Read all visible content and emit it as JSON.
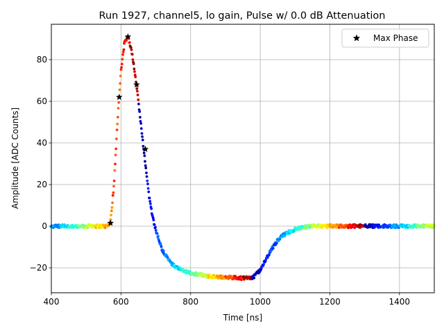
{
  "chart_data": {
    "type": "scatter",
    "title": "Run 1927, channel5, lo gain, Pulse w/ 0.0 dB Attenuation",
    "xlabel": "Time [ns]",
    "ylabel": "Amplitude [ADC Counts]",
    "xlim": [
      400,
      1500
    ],
    "ylim": [
      -32,
      97
    ],
    "xticks": [
      400,
      600,
      800,
      1000,
      1200,
      1400
    ],
    "yticks": [
      -20,
      0,
      20,
      40,
      60,
      80
    ],
    "grid": true,
    "colormap": "jet",
    "legend": {
      "position": "top-right",
      "entries": [
        {
          "label": "Max Phase",
          "marker": "star"
        }
      ]
    },
    "pulse_shape": {
      "x": [
        400,
        560,
        570,
        580,
        590,
        600,
        610,
        620,
        630,
        640,
        650,
        660,
        670,
        680,
        690,
        700,
        710,
        720,
        740,
        760,
        780,
        800,
        850,
        900,
        950,
        980,
        1000,
        1020,
        1040,
        1060,
        1080,
        1100,
        1120,
        1150,
        1200,
        1300,
        1400,
        1500
      ],
      "y": [
        0,
        0,
        2,
        20,
        50,
        75,
        88,
        91,
        85,
        74,
        60,
        45,
        30,
        15,
        5,
        -2,
        -7,
        -12,
        -17,
        -20,
        -21.5,
        -22.5,
        -24,
        -24.5,
        -25,
        -24.5,
        -21,
        -15,
        -9,
        -5,
        -3,
        -1.5,
        -0.5,
        0,
        0,
        0,
        0,
        0
      ]
    },
    "noise_amplitude": 0.8,
    "max_phase_points": {
      "x": [
        570,
        595,
        620,
        645,
        670
      ],
      "y": [
        1.5,
        62,
        91,
        68,
        37
      ]
    }
  }
}
